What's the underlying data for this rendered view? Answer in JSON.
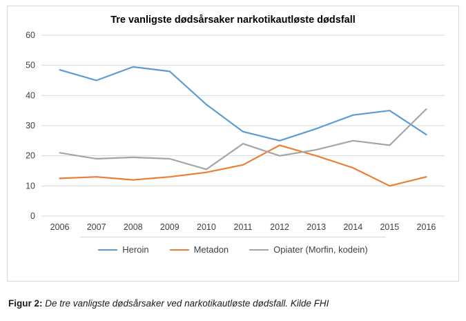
{
  "chart_data": {
    "type": "line",
    "title": "Tre vanligste dødsårsaker narkotikautløste dødsfall",
    "categories": [
      "2006",
      "2007",
      "2008",
      "2009",
      "2010",
      "2011",
      "2012",
      "2013",
      "2014",
      "2015",
      "2016"
    ],
    "series": [
      {
        "name": "Heroin",
        "color": "#5B9BD5",
        "values": [
          48.5,
          45,
          49.5,
          48,
          37,
          28,
          25,
          29,
          33.5,
          35,
          27
        ]
      },
      {
        "name": "Metadon",
        "color": "#ED7D31",
        "values": [
          12.5,
          13,
          12,
          13,
          14.5,
          17,
          23.5,
          20,
          16,
          10,
          13
        ]
      },
      {
        "name": "Opiater (Morfin, kodein)",
        "color": "#A5A5A5",
        "values": [
          21,
          19,
          19.5,
          19,
          15.5,
          24,
          20,
          22,
          25,
          23.5,
          35.5
        ]
      }
    ],
    "xlabel": "",
    "ylabel": "",
    "ylim": [
      0,
      60
    ],
    "yticks": [
      0,
      10,
      20,
      30,
      40,
      50,
      60
    ],
    "grid": true,
    "legend_position": "bottom",
    "gridline_color": "#d9d9d9",
    "tick_label_color": "#404040"
  },
  "caption": {
    "label": "Figur 2:",
    "text": " De tre vanligste dødsårsaker ved narkotikautløste dødsfall. Kilde FHI"
  }
}
